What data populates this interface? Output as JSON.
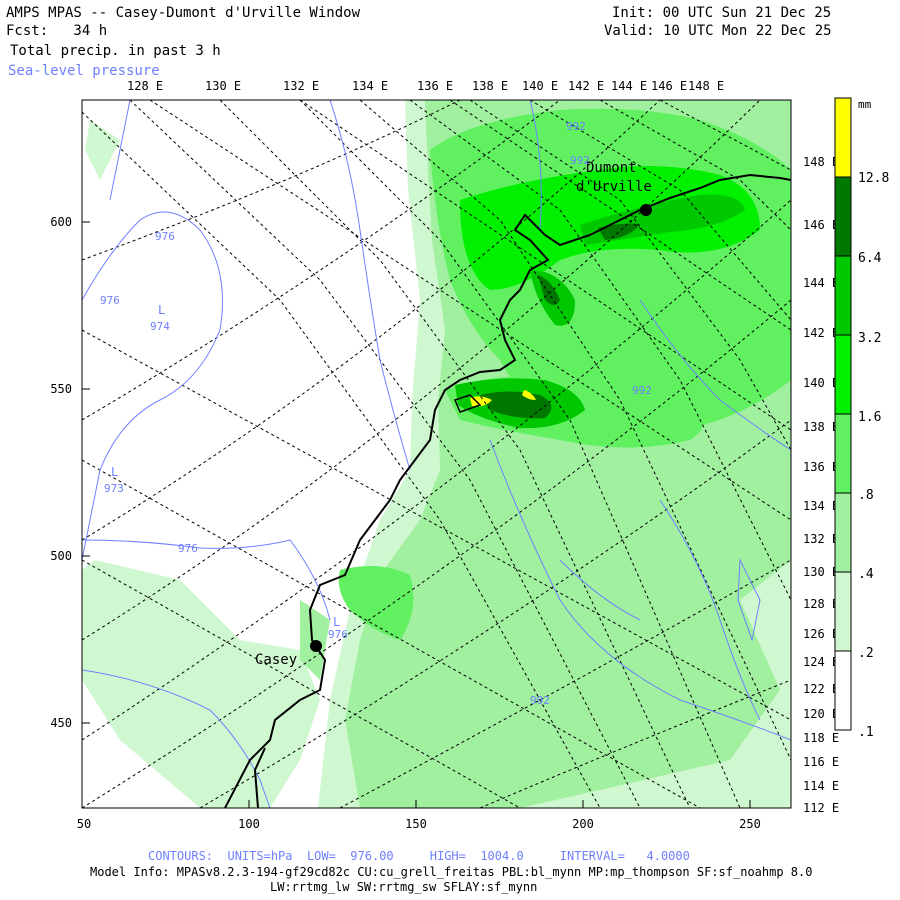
{
  "header": {
    "title": "AMPS MPAS -- Casey-Dumont d'Urville Window",
    "fcst": "Fcst:   34 h",
    "field": "Total precip. in past 3 h",
    "overlay": "Sea-level pressure",
    "init": "Init: 00 UTC Sun 21 Dec 25",
    "valid": "Valid: 10 UTC Mon 22 Dec 25"
  },
  "lon_top": [
    "128 E",
    "130 E",
    "132 E",
    "134 E",
    "136 E",
    "138 E",
    "140 E",
    "142 E",
    "144 E",
    "146 E",
    "148 E"
  ],
  "lon_right": [
    "148 E",
    "146 E",
    "144 E",
    "142 E",
    "140 E",
    "138 E",
    "136 E",
    "134 E",
    "132 E",
    "130 E",
    "128 E",
    "126 E",
    "124 E",
    "122 E",
    "120 E",
    "118 E",
    "116 E",
    "114 E",
    "112 E"
  ],
  "y_ticks": [
    "600",
    "550",
    "500",
    "450"
  ],
  "x_ticks": [
    "50",
    "100",
    "150",
    "200",
    "250"
  ],
  "stations": [
    {
      "name": "Casey"
    },
    {
      "name": "Dumont d'Urville"
    }
  ],
  "dumont_line1": "Dumont",
  "dumont_line2": "d'Urville",
  "contour_labels": [
    "976",
    "976",
    "974",
    "973",
    "976",
    "976",
    "992",
    "992",
    "992",
    "992"
  ],
  "low_markers": [
    "L",
    "L",
    "L"
  ],
  "colorbar": {
    "unit": "mm",
    "levels": [
      "12.8",
      "6.4",
      "3.2",
      "1.6",
      ".8",
      ".4",
      ".2",
      ".1"
    ],
    "colors": [
      "#ffff00",
      "#007800",
      "#00c800",
      "#00f000",
      "#60f060",
      "#a0f0a0",
      "#d0f8d0",
      "#ffffff"
    ]
  },
  "footer": {
    "contours": "CONTOURS:  UNITS=hPa  LOW=  976.00     HIGH=  1004.0     INTERVAL=   4.0000",
    "model1": "Model Info: MPASv8.2.3-194-gf29cd82c CU:cu_grell_freitas PBL:bl_mynn MP:mp_thompson SF:sf_noahmp 8.0",
    "model2": "LW:rrtmg_lw SW:rrtmg_sw SFLAY:sf_mynn"
  }
}
